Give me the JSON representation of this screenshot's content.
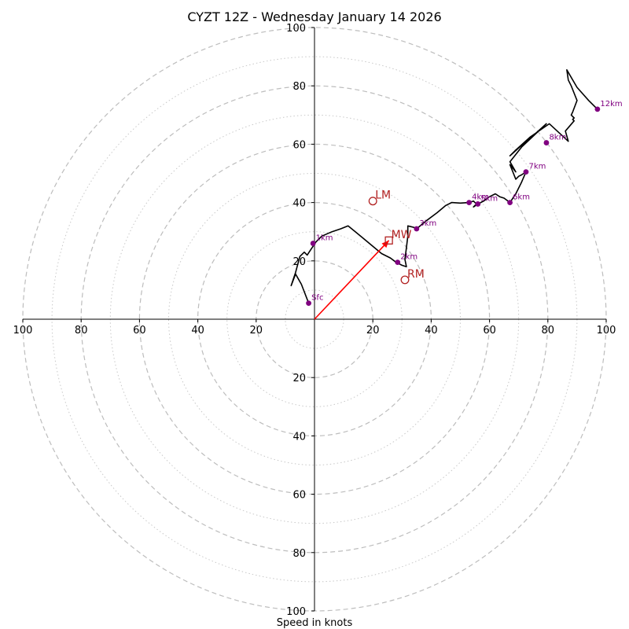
{
  "chart_data": {
    "type": "hodograph",
    "title": "CYZT 12Z - Wednesday January 14 2026",
    "xlabel": "Speed in knots",
    "units": "knots",
    "range": [
      -100,
      100
    ],
    "ring_major": [
      20,
      40,
      60,
      80,
      100
    ],
    "ring_minor": [
      10,
      30,
      50,
      70,
      90
    ],
    "x_ticks": [
      "100",
      "80",
      "60",
      "40",
      "20",
      "20",
      "40",
      "60",
      "80",
      "100"
    ],
    "x_tick_values": [
      -100,
      -80,
      -60,
      -40,
      -20,
      20,
      40,
      60,
      80,
      100
    ],
    "y_ticks": [
      "100",
      "80",
      "60",
      "40",
      "20",
      "20",
      "40",
      "60",
      "80",
      "100"
    ],
    "y_tick_values": [
      100,
      80,
      60,
      40,
      20,
      -20,
      -40,
      -60,
      -80,
      -100
    ],
    "profile_color": "#000000",
    "height_color": "#800080",
    "motion_color": "#b22222",
    "vector_color": "#ff0000",
    "profile": [
      [
        -2,
        5.5
      ],
      [
        -4.5,
        12
      ],
      [
        -6.5,
        15.5
      ],
      [
        -8,
        11.5
      ],
      [
        -6.5,
        16
      ],
      [
        -5,
        21.5
      ],
      [
        -3.5,
        23
      ],
      [
        -2.5,
        22
      ],
      [
        -1.5,
        23.5
      ],
      [
        -0.5,
        25
      ],
      [
        0.5,
        26.5
      ],
      [
        2.5,
        28.5
      ],
      [
        6,
        30
      ],
      [
        9,
        31
      ],
      [
        11.5,
        32
      ],
      [
        14,
        30
      ],
      [
        17,
        27.5
      ],
      [
        20,
        25
      ],
      [
        23,
        22.5
      ],
      [
        26,
        21
      ],
      [
        28,
        19.5
      ],
      [
        30,
        18.5
      ],
      [
        31.5,
        18
      ],
      [
        31,
        20.5
      ],
      [
        31.5,
        24.5
      ],
      [
        32,
        28.5
      ],
      [
        32,
        32
      ],
      [
        34,
        31.5
      ],
      [
        35,
        31
      ],
      [
        38,
        33.5
      ],
      [
        42,
        36.5
      ],
      [
        45,
        39
      ],
      [
        47,
        40
      ],
      [
        50,
        39.8
      ],
      [
        53,
        40
      ],
      [
        54.5,
        40.5
      ],
      [
        55.5,
        39.5
      ],
      [
        54.5,
        38.5
      ],
      [
        56,
        39.5
      ],
      [
        58,
        40.5
      ],
      [
        60,
        42
      ],
      [
        62,
        43
      ],
      [
        63.5,
        42
      ],
      [
        65,
        41.5
      ],
      [
        67,
        40
      ],
      [
        69,
        43
      ],
      [
        71,
        47
      ],
      [
        72.5,
        50.5
      ],
      [
        71,
        49.5
      ],
      [
        70,
        49
      ],
      [
        69,
        48
      ],
      [
        67,
        53
      ],
      [
        69,
        50.5
      ],
      [
        67,
        54
      ],
      [
        71,
        59
      ],
      [
        79.5,
        67
      ],
      [
        75,
        63
      ],
      [
        72,
        60.5
      ],
      [
        67,
        56
      ],
      [
        69,
        58
      ],
      [
        74,
        62.5
      ],
      [
        80.5,
        67
      ],
      [
        87,
        61
      ],
      [
        86,
        64.5
      ],
      [
        89,
        68
      ],
      [
        88.5,
        68.5
      ],
      [
        89,
        69
      ],
      [
        88,
        70
      ],
      [
        88.5,
        71
      ],
      [
        90,
        75
      ],
      [
        89,
        77.5
      ],
      [
        88,
        80
      ],
      [
        87,
        82
      ],
      [
        86.5,
        85.5
      ],
      [
        90,
        79.5
      ],
      [
        94,
        75
      ],
      [
        97,
        72
      ]
    ],
    "height_markers": [
      {
        "label": "Sfc",
        "u": -2,
        "v": 5.5
      },
      {
        "label": "1km",
        "u": -0.5,
        "v": 26
      },
      {
        "label": "2km",
        "u": 28.5,
        "v": 19.5
      },
      {
        "label": "3km",
        "u": 35,
        "v": 31
      },
      {
        "label": "4km",
        "u": 53,
        "v": 40
      },
      {
        "label": "5km",
        "u": 56,
        "v": 39.5
      },
      {
        "label": "6km",
        "u": 67,
        "v": 40
      },
      {
        "label": "7km",
        "u": 72.5,
        "v": 50.5
      },
      {
        "label": "8km",
        "u": 79.5,
        "v": 60.5
      },
      {
        "label": "12km",
        "u": 97,
        "v": 72
      }
    ],
    "storm_motions": [
      {
        "label": "LM",
        "u": 20,
        "v": 40.5,
        "marker": "circle"
      },
      {
        "label": "RM",
        "u": 31,
        "v": 13.5,
        "marker": "circle"
      },
      {
        "label": "MW",
        "u": 25.5,
        "v": 27,
        "marker": "square"
      }
    ],
    "mean_wind_vector": {
      "u": 25.5,
      "v": 27
    }
  }
}
